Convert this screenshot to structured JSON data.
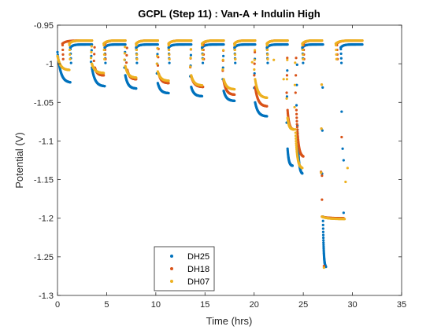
{
  "chart_data": {
    "type": "scatter",
    "title": "GCPL (Step 11) : Van-A + Indulin High",
    "xlabel": "Time (hrs)",
    "ylabel": "Potential (V)",
    "xlim": [
      0,
      35
    ],
    "ylim": [
      -1.3,
      -0.95
    ],
    "x_ticks": [
      0,
      5,
      10,
      15,
      20,
      25,
      30,
      35
    ],
    "y_ticks": [
      -0.95,
      -1,
      -1.05,
      -1.1,
      -1.15,
      -1.2,
      -1.25,
      -1.3
    ],
    "x_tick_labels": [
      "0",
      "5",
      "10",
      "15",
      "20",
      "25",
      "30",
      "35"
    ],
    "y_tick_labels": [
      "-0.95",
      "-1",
      "-1.05",
      "-1.1",
      "-1.15",
      "-1.2",
      "-1.25",
      "-1.3"
    ],
    "grid": false,
    "legend": {
      "placement": "bottom-left",
      "entries": [
        "DH25",
        "DH18",
        "DH07"
      ]
    },
    "series": [
      {
        "name": "DH25",
        "color": "#0072BD",
        "rest_level": -0.975,
        "cycles": [
          {
            "t_start": 0.0,
            "t_end": 1.3,
            "v_start": -0.985,
            "v_end": -1.024
          },
          {
            "t_start": 3.5,
            "t_end": 4.8,
            "v_start": -1.005,
            "v_end": -1.029
          },
          {
            "t_start": 6.9,
            "t_end": 8.0,
            "v_start": -1.015,
            "v_end": -1.032
          },
          {
            "t_start": 10.2,
            "t_end": 11.3,
            "v_start": -1.025,
            "v_end": -1.038
          },
          {
            "t_start": 13.6,
            "t_end": 14.7,
            "v_start": -1.03,
            "v_end": -1.042
          },
          {
            "t_start": 16.9,
            "t_end": 18.0,
            "v_start": -1.035,
            "v_end": -1.048
          },
          {
            "t_start": 20.1,
            "t_end": 21.3,
            "v_start": -1.05,
            "v_end": -1.068
          },
          {
            "t_start": 23.4,
            "t_end": 23.9,
            "v_start": -1.11,
            "v_end": -1.132
          },
          {
            "t_start": 24.4,
            "t_end": 24.9,
            "v_start": -1.08,
            "v_end": -1.142
          },
          {
            "t_start": 27.0,
            "t_end": 27.3,
            "v_start": -1.198,
            "v_end": -1.263
          }
        ],
        "rest_windows": [
          [
            1.3,
            3.5
          ],
          [
            4.8,
            6.9
          ],
          [
            8.0,
            10.2
          ],
          [
            11.3,
            13.6
          ],
          [
            14.7,
            16.9
          ],
          [
            18.0,
            20.1
          ],
          [
            21.3,
            23.4
          ],
          [
            24.9,
            27.0
          ],
          [
            28.8,
            31.0
          ]
        ],
        "drop_points": [
          [
            28.9,
            -1.062
          ],
          [
            29.0,
            -1.11
          ],
          [
            29.1,
            -1.125
          ],
          [
            29.1,
            -1.193
          ]
        ]
      },
      {
        "name": "DH18",
        "color": "#D95319",
        "rest_level": -0.97,
        "cycles": [
          {
            "t_start": 3.8,
            "t_end": 4.7,
            "v_start": -1.005,
            "v_end": -1.015
          },
          {
            "t_start": 7.1,
            "t_end": 8.0,
            "v_start": -1.008,
            "v_end": -1.02
          },
          {
            "t_start": 10.3,
            "t_end": 11.3,
            "v_start": -1.013,
            "v_end": -1.025
          },
          {
            "t_start": 13.6,
            "t_end": 14.8,
            "v_start": -1.016,
            "v_end": -1.03
          },
          {
            "t_start": 16.9,
            "t_end": 18.0,
            "v_start": -1.022,
            "v_end": -1.04
          },
          {
            "t_start": 20.1,
            "t_end": 21.3,
            "v_start": -1.03,
            "v_end": -1.055
          },
          {
            "t_start": 23.4,
            "t_end": 24.0,
            "v_start": -1.06,
            "v_end": -1.085
          },
          {
            "t_start": 24.3,
            "t_end": 25.0,
            "v_start": -1.06,
            "v_end": -1.12
          },
          {
            "t_start": 26.9,
            "t_end": 29.1,
            "v_start": -1.198,
            "v_end": -1.2
          }
        ],
        "rest_windows": [
          [
            0.5,
            3.5
          ],
          [
            4.8,
            6.9
          ],
          [
            8.0,
            10.2
          ],
          [
            11.3,
            13.6
          ],
          [
            14.8,
            16.9
          ],
          [
            18.0,
            20.1
          ],
          [
            21.3,
            23.4
          ],
          [
            25.0,
            26.9
          ],
          [
            28.4,
            31.0
          ]
        ],
        "drop_points": [
          [
            26.8,
            -1.14
          ],
          [
            26.9,
            -1.145
          ],
          [
            26.9,
            -1.176
          ],
          [
            27.1,
            -1.262
          ],
          [
            28.9,
            -1.095
          ]
        ]
      },
      {
        "name": "DH07",
        "color": "#EDB120",
        "rest_level": -0.97,
        "cycles": [
          {
            "t_start": 0.0,
            "t_end": 1.2,
            "v_start": -0.99,
            "v_end": -1.008
          },
          {
            "t_start": 3.5,
            "t_end": 4.7,
            "v_start": -1.0,
            "v_end": -1.012
          },
          {
            "t_start": 6.9,
            "t_end": 8.0,
            "v_start": -1.003,
            "v_end": -1.018
          },
          {
            "t_start": 10.2,
            "t_end": 11.3,
            "v_start": -1.01,
            "v_end": -1.022
          },
          {
            "t_start": 13.6,
            "t_end": 14.7,
            "v_start": -1.015,
            "v_end": -1.028
          },
          {
            "t_start": 16.9,
            "t_end": 18.0,
            "v_start": -1.02,
            "v_end": -1.033
          },
          {
            "t_start": 20.1,
            "t_end": 21.3,
            "v_start": -1.02,
            "v_end": -1.044
          },
          {
            "t_start": 23.4,
            "t_end": 24.0,
            "v_start": -1.07,
            "v_end": -1.085
          },
          {
            "t_start": 24.2,
            "t_end": 24.9,
            "v_start": -1.085,
            "v_end": -1.135
          },
          {
            "t_start": 26.9,
            "t_end": 29.2,
            "v_start": -1.198,
            "v_end": -1.201
          }
        ],
        "rest_windows": [
          [
            1.2,
            3.5
          ],
          [
            4.7,
            6.9
          ],
          [
            8.0,
            10.2
          ],
          [
            11.3,
            13.6
          ],
          [
            14.7,
            16.9
          ],
          [
            18.0,
            20.1
          ],
          [
            21.3,
            23.4
          ],
          [
            24.9,
            26.9
          ],
          [
            28.3,
            31.0
          ]
        ],
        "drop_points": [
          [
            19.8,
            -0.998
          ],
          [
            22.0,
            -0.995
          ],
          [
            23.0,
            -1.02
          ],
          [
            27.1,
            -1.264
          ],
          [
            29.3,
            -1.153
          ],
          [
            29.5,
            -1.135
          ]
        ]
      }
    ]
  }
}
